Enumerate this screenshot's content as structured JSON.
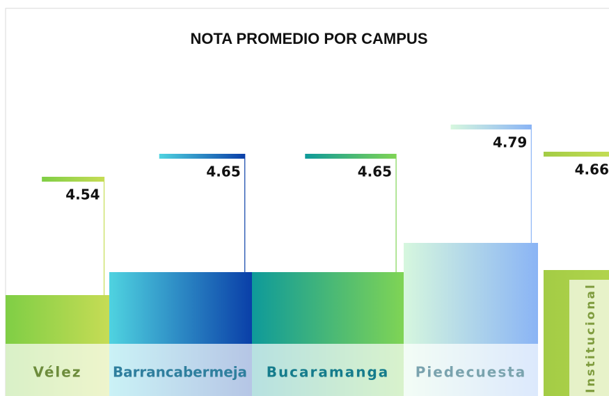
{
  "chart_data": {
    "type": "bar",
    "title": "NOTA PROMEDIO POR CAMPUS",
    "categories": [
      "Vélez",
      "Barrancabermeja",
      "Bucaramanga",
      "Piedecuesta",
      "Institucional"
    ],
    "values": [
      4.54,
      4.65,
      4.65,
      4.79,
      4.66
    ],
    "colors": [
      [
        "#7fce45",
        "#c6dc55"
      ],
      [
        "#4fd3e0",
        "#0a3fa8"
      ],
      [
        "#0e9a9a",
        "#7fd455"
      ],
      [
        "#d6f7de",
        "#8ab4f5"
      ],
      [
        "#a3cc45",
        "#c3dd55"
      ]
    ],
    "label_colors": [
      "#6d8c3c",
      "#2f7f9e",
      "#157c8c",
      "#7aa3ae",
      "#7f9c3e"
    ]
  }
}
